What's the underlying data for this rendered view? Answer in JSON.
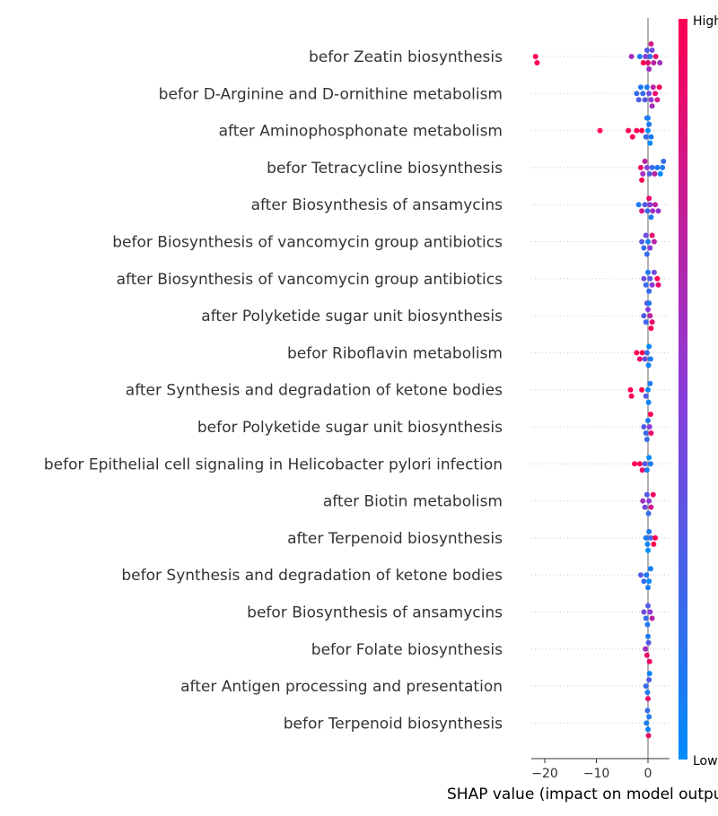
{
  "chart_data": {
    "type": "scatter",
    "subtype": "shap-beeswarm",
    "title": "",
    "xlabel": "SHAP value (impact on model output)",
    "ylabel": "",
    "xlim": [
      -24,
      4
    ],
    "xticks": [
      -20,
      -10,
      0
    ],
    "grid": false,
    "legend": "colorbar-right",
    "colorbar": {
      "high_label": "High",
      "low_label": "Low",
      "high_color": "#ff0052",
      "mid_color": "#8b3bd8",
      "low_color": "#008bfb"
    },
    "features": [
      {
        "name": "befor Zeatin biosynthesis",
        "points": [
          [
            -21.8,
            1
          ],
          [
            -21.5,
            1
          ],
          [
            -3.2,
            0.6
          ],
          [
            -1.6,
            0.1
          ],
          [
            -0.9,
            1
          ],
          [
            -0.5,
            0.5
          ],
          [
            -0.2,
            0.3
          ],
          [
            0,
            0.9
          ],
          [
            0.2,
            0.6
          ],
          [
            0.4,
            0.2
          ],
          [
            0.6,
            0.8
          ],
          [
            0.8,
            0.4
          ],
          [
            1.1,
            0.7
          ],
          [
            1.5,
            0.9
          ],
          [
            2.3,
            0.6
          ]
        ]
      },
      {
        "name": "befor D-Arginine and D-ornithine metabolism",
        "points": [
          [
            -2.2,
            0.2
          ],
          [
            -1.8,
            0.3
          ],
          [
            -1.4,
            0.1
          ],
          [
            -1,
            0.2
          ],
          [
            -0.6,
            0.3
          ],
          [
            -0.2,
            0.1
          ],
          [
            0.2,
            0.4
          ],
          [
            0.6,
            0.5
          ],
          [
            1,
            0.7
          ],
          [
            1.4,
            0.9
          ],
          [
            1.8,
            0.8
          ],
          [
            2.2,
            0.95
          ],
          [
            0.8,
            0.6
          ]
        ]
      },
      {
        "name": "after Aminophosphonate metabolism",
        "points": [
          [
            -9.3,
            1
          ],
          [
            -3.8,
            1
          ],
          [
            -3,
            1
          ],
          [
            -2.2,
            1
          ],
          [
            -1.2,
            1
          ],
          [
            -0.4,
            0.2
          ],
          [
            0,
            0
          ],
          [
            0.2,
            0.1
          ],
          [
            0.4,
            0
          ],
          [
            0.6,
            0.1
          ],
          [
            0,
            0.05
          ],
          [
            -0.2,
            0.1
          ]
        ]
      },
      {
        "name": "befor Tetracycline biosynthesis",
        "points": [
          [
            -1.4,
            0.9
          ],
          [
            -1,
            0.6
          ],
          [
            -0.6,
            0.7
          ],
          [
            -0.2,
            0.5
          ],
          [
            0.3,
            0.3
          ],
          [
            0.8,
            0.2
          ],
          [
            1.3,
            0.7
          ],
          [
            1.8,
            0.1
          ],
          [
            2.4,
            0
          ],
          [
            2.8,
            0.1
          ],
          [
            3,
            0.2
          ],
          [
            -1.2,
            1
          ]
        ]
      },
      {
        "name": "after Biosynthesis of ansamycins",
        "points": [
          [
            -1.8,
            0.1
          ],
          [
            -1.2,
            0.8
          ],
          [
            -0.6,
            0.3
          ],
          [
            -0.1,
            0.2
          ],
          [
            0.4,
            0.5
          ],
          [
            0.9,
            0.6
          ],
          [
            1.4,
            0.7
          ],
          [
            2,
            0.55
          ],
          [
            0.2,
            0.9
          ],
          [
            0.6,
            0.1
          ]
        ]
      },
      {
        "name": "befor Biosynthesis of vancomycin group antibiotics",
        "points": [
          [
            -1.2,
            0.3
          ],
          [
            -0.8,
            0.2
          ],
          [
            -0.4,
            0.4
          ],
          [
            0,
            0.1
          ],
          [
            0.4,
            0.5
          ],
          [
            0.8,
            0.9
          ],
          [
            1.2,
            0.7
          ],
          [
            -0.2,
            0.2
          ]
        ]
      },
      {
        "name": "after Biosynthesis of vancomycin group antibiotics",
        "points": [
          [
            -0.8,
            0.4
          ],
          [
            -0.4,
            0.2
          ],
          [
            0,
            0.1
          ],
          [
            0.4,
            0.3
          ],
          [
            0.8,
            0.5
          ],
          [
            1.2,
            0.4
          ],
          [
            1.8,
            1
          ],
          [
            2,
            0.9
          ],
          [
            0.2,
            0.2
          ]
        ]
      },
      {
        "name": "after Polyketide sugar unit biosynthesis",
        "points": [
          [
            -0.8,
            0.3
          ],
          [
            -0.4,
            0.2
          ],
          [
            0,
            0.5
          ],
          [
            0.4,
            0.7
          ],
          [
            0.8,
            0.9
          ],
          [
            0.6,
            1
          ],
          [
            -0.2,
            0.4
          ],
          [
            0.2,
            0.1
          ]
        ]
      },
      {
        "name": "befor Riboflavin metabolism",
        "points": [
          [
            -2.2,
            1
          ],
          [
            -1.6,
            0.9
          ],
          [
            -1.1,
            1
          ],
          [
            -0.6,
            0.4
          ],
          [
            -0.2,
            0.2
          ],
          [
            0.2,
            0
          ],
          [
            0.5,
            0.1
          ],
          [
            0.1,
            0.05
          ]
        ]
      },
      {
        "name": "after Synthesis and degradation of ketone bodies",
        "points": [
          [
            -3.4,
            1
          ],
          [
            -3.2,
            1
          ],
          [
            -1.2,
            1
          ],
          [
            -0.4,
            0.3
          ],
          [
            0,
            0
          ],
          [
            0.4,
            0.1
          ],
          [
            0.1,
            0.05
          ]
        ]
      },
      {
        "name": "befor Polyketide sugar unit biosynthesis",
        "points": [
          [
            -0.8,
            0.3
          ],
          [
            -0.4,
            0.2
          ],
          [
            0,
            0.1
          ],
          [
            0.3,
            0.5
          ],
          [
            0.6,
            0.9
          ],
          [
            -0.2,
            0.2
          ],
          [
            0.5,
            1
          ]
        ]
      },
      {
        "name": "befor Epithelial cell signaling in Helicobacter pylori infection",
        "points": [
          [
            -2.6,
            1
          ],
          [
            -1.6,
            1
          ],
          [
            -1.1,
            0.9
          ],
          [
            -0.6,
            0.3
          ],
          [
            -0.2,
            0.1
          ],
          [
            0.2,
            0
          ],
          [
            0.5,
            0.1
          ]
        ]
      },
      {
        "name": "after Biotin metabolism",
        "points": [
          [
            -1,
            0.6
          ],
          [
            -0.6,
            0.4
          ],
          [
            -0.2,
            0.3
          ],
          [
            0.2,
            0.5
          ],
          [
            0.6,
            0.8
          ],
          [
            1,
            0.95
          ],
          [
            0.1,
            0.2
          ]
        ]
      },
      {
        "name": "after Terpenoid biosynthesis",
        "points": [
          [
            -0.4,
            0.1
          ],
          [
            -0.1,
            0.05
          ],
          [
            0.2,
            0.1
          ],
          [
            0.5,
            0.2
          ],
          [
            1.1,
            1
          ],
          [
            1.4,
            1
          ],
          [
            0,
            0
          ]
        ]
      },
      {
        "name": "befor Synthesis and degradation of ketone bodies",
        "points": [
          [
            -1.4,
            0.3
          ],
          [
            -0.8,
            0.2
          ],
          [
            -0.3,
            0.1
          ],
          [
            0.2,
            0
          ],
          [
            0.5,
            0.05
          ],
          [
            0,
            0.1
          ]
        ]
      },
      {
        "name": "befor Biosynthesis of ansamycins",
        "points": [
          [
            -0.8,
            0.4
          ],
          [
            -0.4,
            0.2
          ],
          [
            0,
            0.3
          ],
          [
            0.4,
            0.5
          ],
          [
            0.8,
            0.7
          ],
          [
            -0.1,
            0.1
          ]
        ]
      },
      {
        "name": "befor Folate biosynthesis",
        "points": [
          [
            -0.5,
            0.6
          ],
          [
            -0.2,
            0.9
          ],
          [
            0.1,
            0.3
          ],
          [
            0.3,
            0.95
          ],
          [
            0,
            0.1
          ]
        ]
      },
      {
        "name": "after Antigen processing and presentation",
        "points": [
          [
            -0.4,
            0.2
          ],
          [
            -0.1,
            0.1
          ],
          [
            0.2,
            0.3
          ],
          [
            0,
            0.9
          ],
          [
            0.3,
            0.05
          ]
        ]
      },
      {
        "name": "befor Terpenoid biosynthesis",
        "points": [
          [
            -0.3,
            0.1
          ],
          [
            0,
            0.05
          ],
          [
            0.2,
            0.1
          ],
          [
            0.1,
            0.9
          ],
          [
            -0.1,
            0.2
          ]
        ]
      }
    ]
  }
}
